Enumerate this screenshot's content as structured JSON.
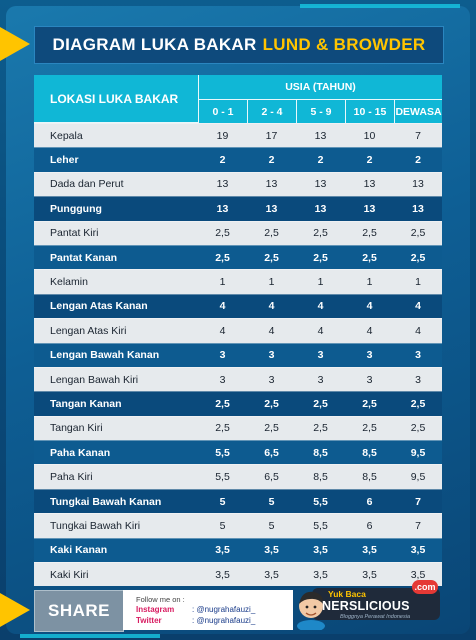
{
  "title": {
    "white": "DIAGRAM LUKA BAKAR",
    "yellow": "LUND & BROWDER"
  },
  "table": {
    "location_header": "LOKASI LUKA BAKAR",
    "age_header": "USIA (TAHUN)",
    "age_groups": [
      "0 - 1",
      "2 - 4",
      "5 - 9",
      "10 - 15",
      "DEWASA"
    ],
    "rows": [
      {
        "label": "Kepala",
        "values": [
          "19",
          "17",
          "13",
          "10",
          "7"
        ]
      },
      {
        "label": "Leher",
        "values": [
          "2",
          "2",
          "2",
          "2",
          "2"
        ]
      },
      {
        "label": "Dada dan Perut",
        "values": [
          "13",
          "13",
          "13",
          "13",
          "13"
        ]
      },
      {
        "label": "Punggung",
        "values": [
          "13",
          "13",
          "13",
          "13",
          "13"
        ]
      },
      {
        "label": "Pantat Kiri",
        "values": [
          "2,5",
          "2,5",
          "2,5",
          "2,5",
          "2,5"
        ]
      },
      {
        "label": "Pantat Kanan",
        "values": [
          "2,5",
          "2,5",
          "2,5",
          "2,5",
          "2,5"
        ]
      },
      {
        "label": "Kelamin",
        "values": [
          "1",
          "1",
          "1",
          "1",
          "1"
        ]
      },
      {
        "label": "Lengan Atas Kanan",
        "values": [
          "4",
          "4",
          "4",
          "4",
          "4"
        ]
      },
      {
        "label": "Lengan Atas Kiri",
        "values": [
          "4",
          "4",
          "4",
          "4",
          "4"
        ]
      },
      {
        "label": "Lengan Bawah Kanan",
        "values": [
          "3",
          "3",
          "3",
          "3",
          "3"
        ]
      },
      {
        "label": "Lengan Bawah Kiri",
        "values": [
          "3",
          "3",
          "3",
          "3",
          "3"
        ]
      },
      {
        "label": "Tangan Kanan",
        "values": [
          "2,5",
          "2,5",
          "2,5",
          "2,5",
          "2,5"
        ]
      },
      {
        "label": "Tangan Kiri",
        "values": [
          "2,5",
          "2,5",
          "2,5",
          "2,5",
          "2,5"
        ]
      },
      {
        "label": "Paha Kanan",
        "values": [
          "5,5",
          "6,5",
          "8,5",
          "8,5",
          "9,5"
        ]
      },
      {
        "label": "Paha Kiri",
        "values": [
          "5,5",
          "6,5",
          "8,5",
          "8,5",
          "9,5"
        ]
      },
      {
        "label": "Tungkai Bawah Kanan",
        "values": [
          "5",
          "5",
          "5,5",
          "6",
          "7"
        ]
      },
      {
        "label": "Tungkai Bawah Kiri",
        "values": [
          "5",
          "5",
          "5,5",
          "6",
          "7"
        ]
      },
      {
        "label": "Kaki Kanan",
        "values": [
          "3,5",
          "3,5",
          "3,5",
          "3,5",
          "3,5"
        ]
      },
      {
        "label": "Kaki Kiri",
        "values": [
          "3,5",
          "3,5",
          "3,5",
          "3,5",
          "3,5"
        ]
      }
    ]
  },
  "footer": {
    "share_label": "SHARE",
    "follow_label": "Follow me on :",
    "instagram_label": "Instagram",
    "instagram_value": ": @nugrahafauzi_",
    "twitter_label": "Twitter",
    "twitter_value": ": @nugrahafauzi_",
    "brand_prefix": "Yuk Baca",
    "brand_name": "NERSLICIOUS",
    "brand_suffix": ".com",
    "brand_tagline": "Bloggnya Perawat Indonesia"
  },
  "colors": {
    "accent_yellow": "#ffc400",
    "header_cyan": "#10b7d6",
    "row_light": "#e6eaed",
    "row_dark": "#0d5b90"
  }
}
